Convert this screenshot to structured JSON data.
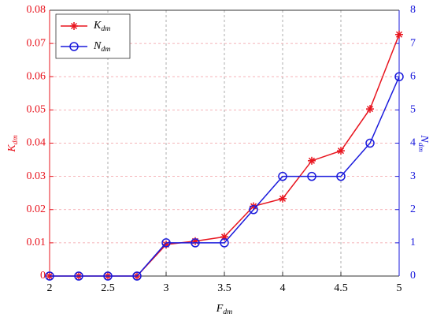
{
  "chart_data": {
    "type": "line",
    "xlabel": "Fdm",
    "ylabel": "Kdm",
    "y2label": "Ndm",
    "x": [
      2,
      2.25,
      2.5,
      2.75,
      3,
      3.25,
      3.5,
      3.75,
      4,
      4.25,
      4.5,
      4.75,
      5
    ],
    "series": [
      {
        "name": "Kdm",
        "color": "#e8141e",
        "marker": "star",
        "values": [
          0,
          0,
          0,
          0,
          0.0095,
          0.0105,
          0.0118,
          0.021,
          0.0233,
          0.0347,
          0.0377,
          0.0503,
          0.0727
        ]
      },
      {
        "name": "Ndm",
        "color": "#1a1adc",
        "marker": "circle",
        "axis": "y2",
        "values": [
          0,
          0,
          0,
          0,
          1,
          1,
          1,
          2,
          3,
          3,
          3,
          4,
          6
        ]
      }
    ],
    "xlim": [
      2,
      5
    ],
    "xticks": [
      2,
      2.5,
      3,
      3.5,
      4,
      4.5,
      5
    ],
    "ylim": [
      0,
      0.08
    ],
    "yticks": [
      0,
      0.01,
      0.02,
      0.03,
      0.04,
      0.05,
      0.06,
      0.07,
      0.08
    ],
    "y2lim": [
      0,
      8
    ],
    "y2ticks": [
      0,
      1,
      2,
      3,
      4,
      5,
      6,
      7,
      8
    ],
    "grid": true,
    "legend": "upper left"
  }
}
